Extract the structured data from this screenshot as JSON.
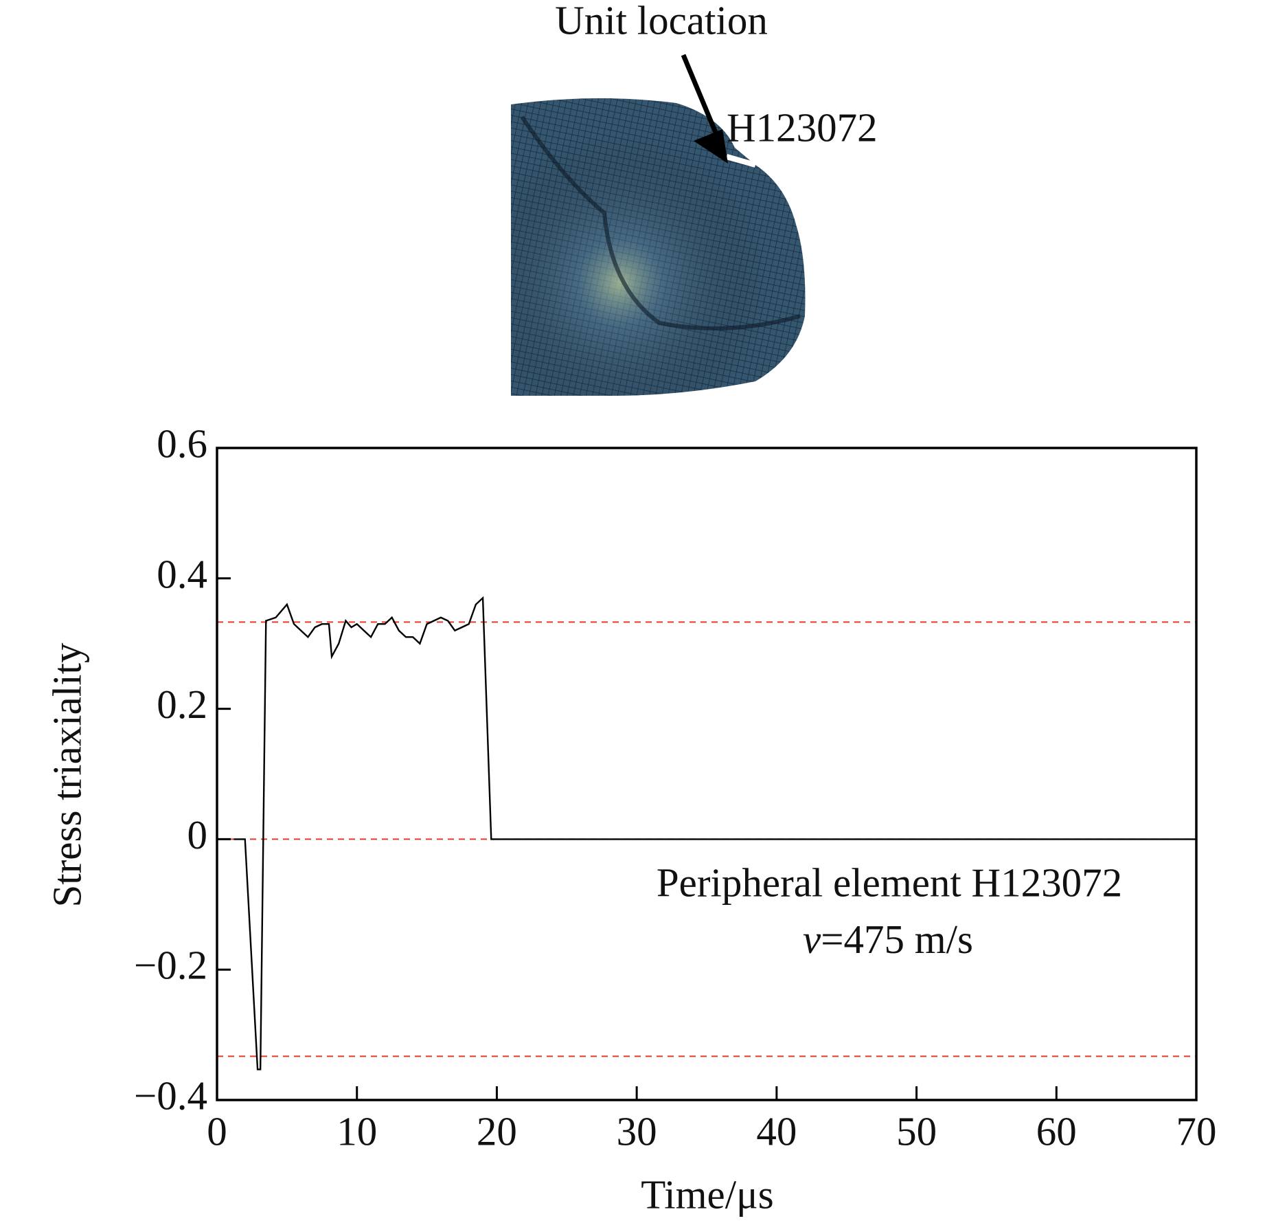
{
  "chart_data": {
    "type": "line",
    "header_labels": [
      "Unit location",
      "H123072"
    ],
    "xlabel": "Time/μs",
    "ylabel": "Stress triaxiality",
    "annotation": "Peripheral element H123072",
    "annotation_italic": "v",
    "annotation_rest": "=475 m/s",
    "x": [
      1.2,
      2,
      2.9,
      3.1,
      3.5,
      4.2,
      5,
      5.5,
      6,
      6.5,
      7,
      7.5,
      8,
      8.2,
      8.7,
      9.2,
      9.6,
      10,
      10.5,
      11,
      11.5,
      12,
      12.5,
      13,
      13.5,
      14,
      14.5,
      15,
      15.5,
      16,
      16.5,
      17,
      17.5,
      18,
      18.5,
      19,
      19.6,
      70
    ],
    "values": [
      0,
      0,
      -0.353,
      -0.353,
      0.335,
      0.34,
      0.36,
      0.33,
      0.32,
      0.31,
      0.325,
      0.33,
      0.33,
      0.28,
      0.3,
      0.335,
      0.325,
      0.33,
      0.32,
      0.31,
      0.33,
      0.33,
      0.34,
      0.32,
      0.31,
      0.31,
      0.3,
      0.33,
      0.335,
      0.34,
      0.335,
      0.32,
      0.325,
      0.33,
      0.36,
      0.37,
      0,
      0
    ],
    "color": "#000000",
    "reference_lines": [
      0.333,
      0,
      -0.333
    ],
    "reference_color": "#e03c31",
    "xlim": [
      0,
      70
    ],
    "xticks": [
      0,
      10,
      20,
      30,
      40,
      50,
      60,
      70
    ],
    "ylim": [
      -0.4,
      0.6
    ],
    "yticks": [
      {
        "value": -0.4,
        "label": "−0.4"
      },
      {
        "value": -0.2,
        "label": "−0.2"
      },
      0,
      0.2,
      0.4,
      0.6
    ]
  }
}
